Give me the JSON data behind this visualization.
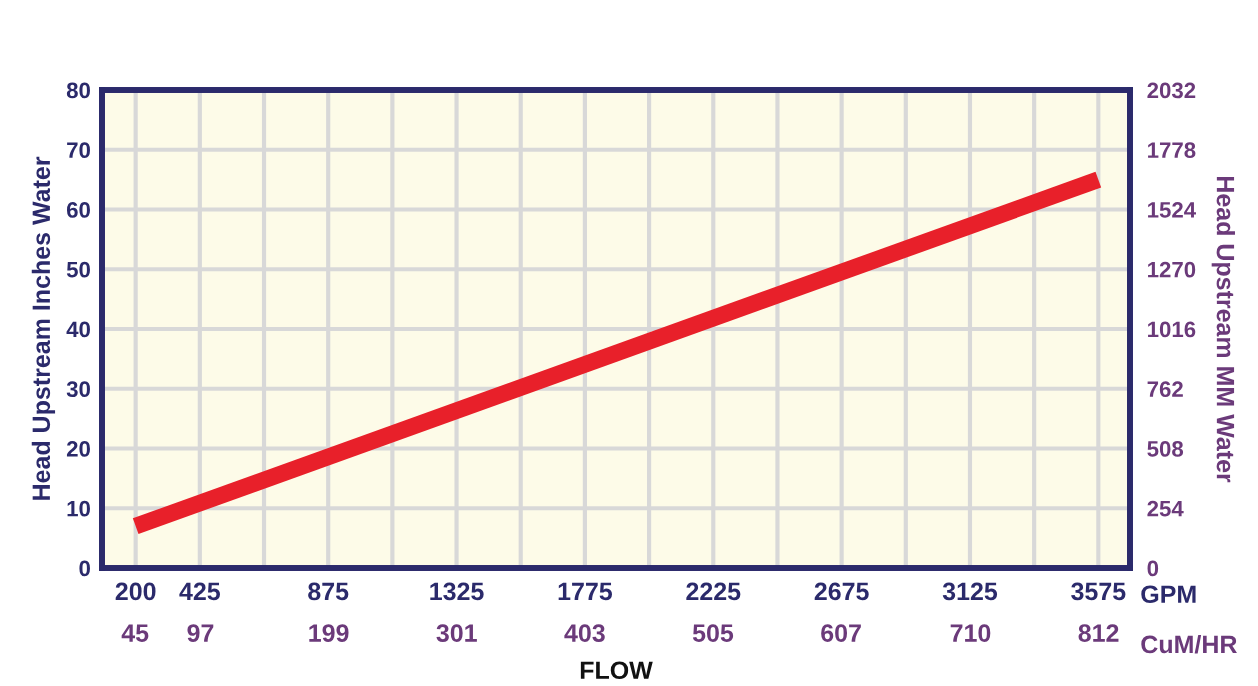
{
  "chart_data": {
    "type": "line",
    "xlabel": "FLOW",
    "ylabel": "Head Upstream Inches Water",
    "y2label": "Head Upstream MM Water",
    "x": [
      200,
      3575
    ],
    "series": [
      {
        "color": "#e8202a",
        "values": [
          7,
          65
        ]
      }
    ],
    "xlim": [
      82,
      3686
    ],
    "xticks": [
      200,
      425,
      {
        "value": 650,
        "label": null
      },
      875,
      {
        "value": 1100,
        "label": null
      },
      1325,
      {
        "value": 1550,
        "label": null
      },
      1775,
      {
        "value": 2000,
        "label": null
      },
      2225,
      {
        "value": 2450,
        "label": null
      },
      2675,
      {
        "value": 2900,
        "label": null
      },
      3125,
      {
        "value": 3350,
        "label": null
      },
      3575
    ],
    "x2lim": [
      18.6,
      837
    ],
    "x2ticks": [
      45,
      97,
      199,
      301,
      403,
      505,
      607,
      710,
      812
    ],
    "ylim": [
      0,
      80
    ],
    "yticks": [
      0,
      10,
      20,
      30,
      40,
      50,
      60,
      70,
      80
    ],
    "y2lim": [
      0,
      2032
    ],
    "y2ticks": [
      0,
      254,
      508,
      762,
      1016,
      1270,
      1524,
      1778,
      2032
    ],
    "grid": true,
    "legend": false,
    "marker": "none",
    "line_style": "solid",
    "annotations": [
      "GPM",
      "CuM/HR"
    ]
  }
}
